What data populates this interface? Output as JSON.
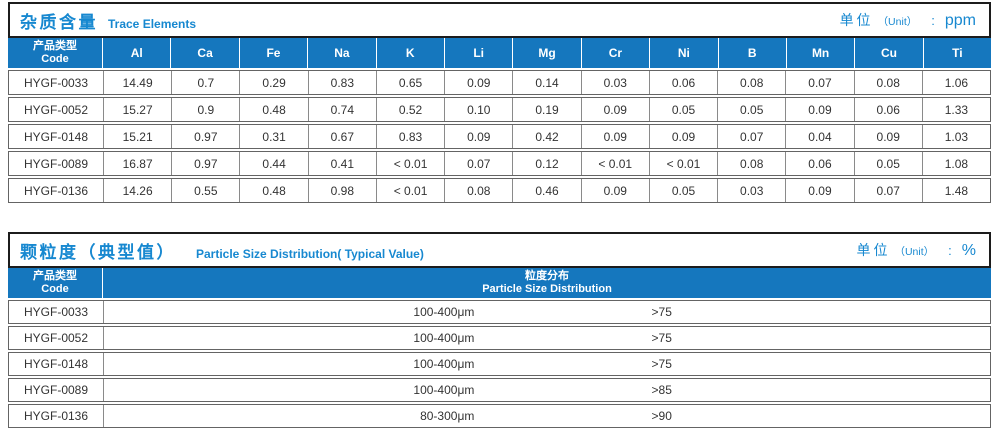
{
  "colors": {
    "header_bg": "#1577BE",
    "title_text": "#1788D0",
    "row_border": "#646464",
    "outer_border": "#1C1C1C"
  },
  "table1": {
    "title_zh": "杂质含量",
    "title_en": "Trace Elements",
    "unit": {
      "label_zh": "单位",
      "label_en": "（Unit）",
      "separator": ":",
      "value": "ppm"
    },
    "col_header_first": {
      "zh": "产品类型",
      "en": "Code"
    },
    "columns": [
      "Al",
      "Ca",
      "Fe",
      "Na",
      "K",
      "Li",
      "Mg",
      "Cr",
      "Ni",
      "B",
      "Mn",
      "Cu",
      "Ti"
    ],
    "rows": [
      {
        "code": "HYGF-0033",
        "values": [
          "14.49",
          "0.7",
          "0.29",
          "0.83",
          "0.65",
          "0.09",
          "0.14",
          "0.03",
          "0.06",
          "0.08",
          "0.07",
          "0.08",
          "1.06"
        ]
      },
      {
        "code": "HYGF-0052",
        "values": [
          "15.27",
          "0.9",
          "0.48",
          "0.74",
          "0.52",
          "0.10",
          "0.19",
          "0.09",
          "0.05",
          "0.05",
          "0.09",
          "0.06",
          "1.33"
        ]
      },
      {
        "code": "HYGF-0148",
        "values": [
          "15.21",
          "0.97",
          "0.31",
          "0.67",
          "0.83",
          "0.09",
          "0.42",
          "0.09",
          "0.09",
          "0.07",
          "0.04",
          "0.09",
          "1.03"
        ]
      },
      {
        "code": "HYGF-0089",
        "values": [
          "16.87",
          "0.97",
          "0.44",
          "0.41",
          "< 0.01",
          "0.07",
          "0.12",
          "< 0.01",
          "< 0.01",
          "0.08",
          "0.06",
          "0.05",
          "1.08"
        ]
      },
      {
        "code": "HYGF-0136",
        "values": [
          "14.26",
          "0.55",
          "0.48",
          "0.98",
          "< 0.01",
          "0.08",
          "0.46",
          "0.09",
          "0.05",
          "0.03",
          "0.09",
          "0.07",
          "1.48"
        ]
      }
    ]
  },
  "table2": {
    "title_zh": "颗粒度（典型值）",
    "title_en": "Particle Size Distribution( Typical Value)",
    "unit": {
      "label_zh": "单位",
      "label_en": "（Unit）",
      "separator": ":",
      "value": "%"
    },
    "col_header_first": {
      "zh": "产品类型",
      "en": "Code"
    },
    "col_header_dist": {
      "zh": "粒度分布",
      "en": "Particle Size Distribution"
    },
    "rows": [
      {
        "code": "HYGF-0033",
        "range": "100-400μm",
        "percent": ">75"
      },
      {
        "code": "HYGF-0052",
        "range": "100-400μm",
        "percent": ">75"
      },
      {
        "code": "HYGF-0148",
        "range": "100-400μm",
        "percent": ">75"
      },
      {
        "code": "HYGF-0089",
        "range": "100-400μm",
        "percent": ">85"
      },
      {
        "code": "HYGF-0136",
        "range": "80-300μm",
        "percent": ">90"
      }
    ]
  }
}
